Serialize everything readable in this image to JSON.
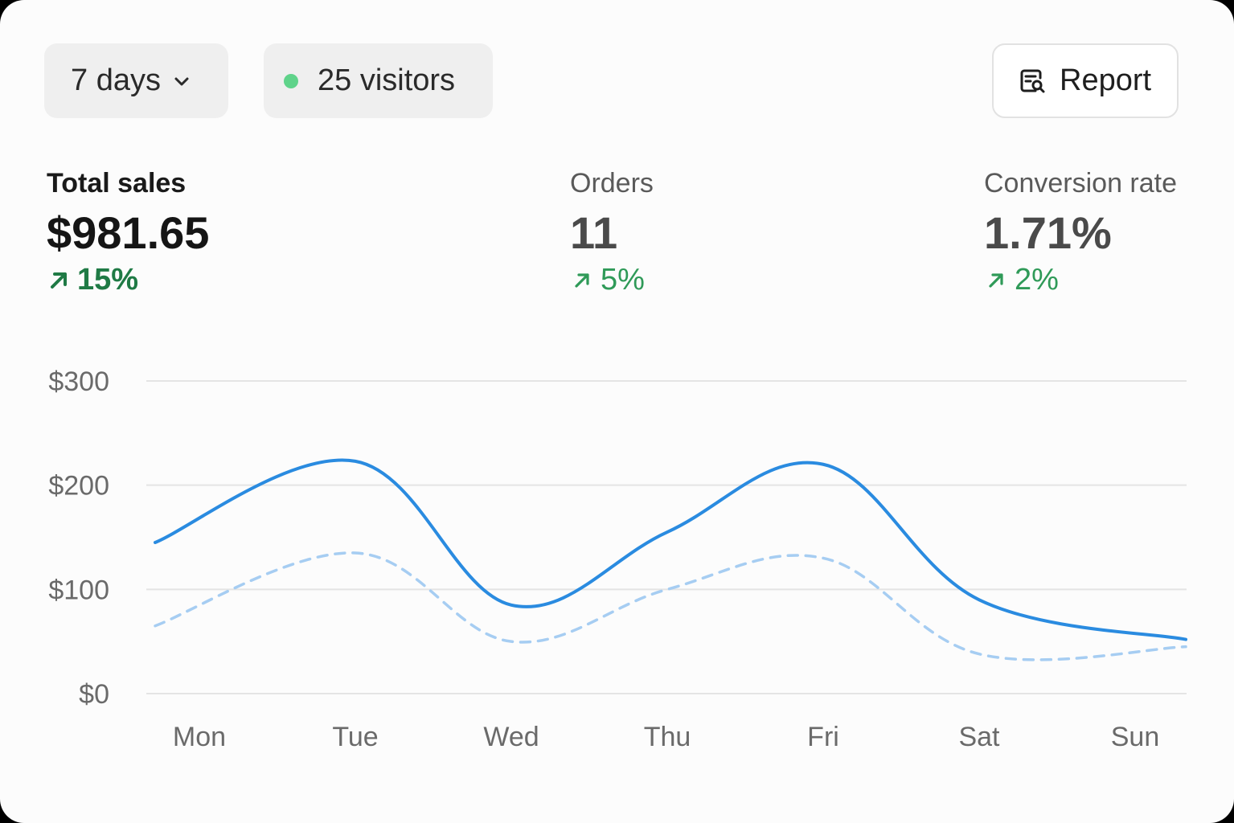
{
  "toolbar": {
    "range_label": "7 days",
    "visitors_label": "25 visitors",
    "report_label": "Report"
  },
  "colors": {
    "accent": "#2a8be0",
    "accent_light": "#a6cdf2",
    "positive": "#2f9a58",
    "live_dot": "#5fd38a"
  },
  "metrics": {
    "sales": {
      "label": "Total sales",
      "value": "$981.65",
      "delta": "15%"
    },
    "orders": {
      "label": "Orders",
      "value": "11",
      "delta": "5%"
    },
    "conversion": {
      "label": "Conversion rate",
      "value": "1.71%",
      "delta": "2%"
    }
  },
  "chart_data": {
    "type": "line",
    "categories": [
      "Mon",
      "Tue",
      "Wed",
      "Thu",
      "Fri",
      "Sat",
      "Sun"
    ],
    "series": [
      {
        "name": "",
        "style": "solid",
        "values": [
          145,
          223,
          85,
          155,
          220,
          90,
          52
        ]
      },
      {
        "name": "",
        "style": "dashed",
        "values": [
          65,
          135,
          50,
          100,
          130,
          38,
          45
        ]
      }
    ],
    "yticks": [
      "$300",
      "$200",
      "$100",
      "$0"
    ],
    "ylim": [
      0,
      300
    ],
    "grid": true
  }
}
